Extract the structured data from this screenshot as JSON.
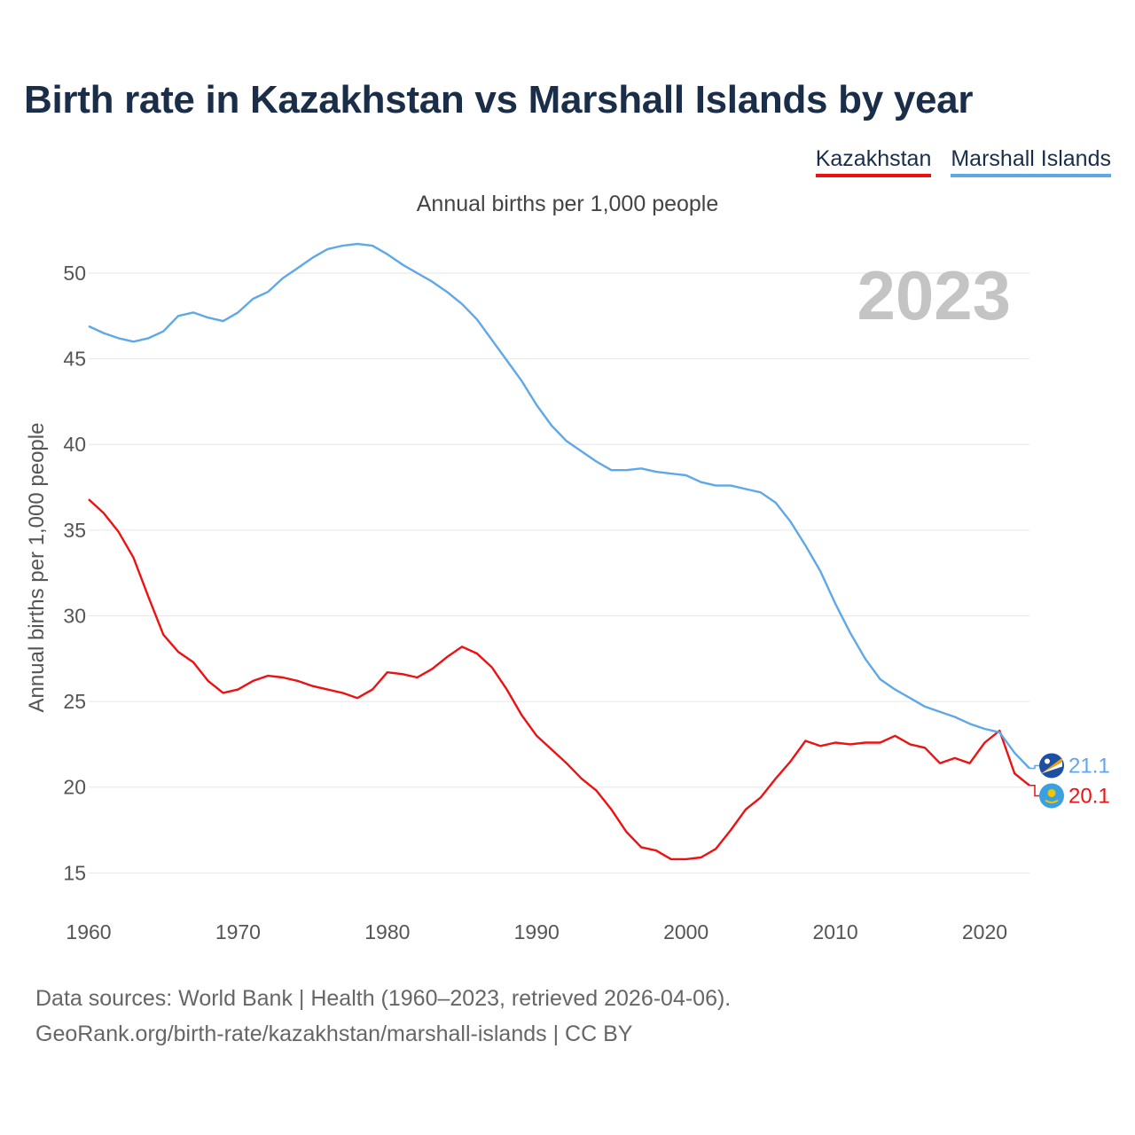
{
  "chart_data": {
    "type": "line",
    "title": "Birth rate in Kazakhstan vs Marshall Islands by year",
    "subtitle": "Annual births per 1,000 people",
    "ylabel": "Annual births per 1,000 people",
    "xlabel": "",
    "year_label": "2023",
    "x_range": [
      1960,
      2023
    ],
    "ylim": [
      13,
      53
    ],
    "y_ticks": [
      15,
      20,
      25,
      30,
      35,
      40,
      45,
      50
    ],
    "x_ticks": [
      1960,
      1970,
      1980,
      1990,
      2000,
      2010,
      2020
    ],
    "grid": true,
    "x": [
      1960,
      1961,
      1962,
      1963,
      1964,
      1965,
      1966,
      1967,
      1968,
      1969,
      1970,
      1971,
      1972,
      1973,
      1974,
      1975,
      1976,
      1977,
      1978,
      1979,
      1980,
      1981,
      1982,
      1983,
      1984,
      1985,
      1986,
      1987,
      1988,
      1989,
      1990,
      1991,
      1992,
      1993,
      1994,
      1995,
      1996,
      1997,
      1998,
      1999,
      2000,
      2001,
      2002,
      2003,
      2004,
      2005,
      2006,
      2007,
      2008,
      2009,
      2010,
      2011,
      2012,
      2013,
      2014,
      2015,
      2016,
      2017,
      2018,
      2019,
      2020,
      2021,
      2022,
      2023
    ],
    "series": [
      {
        "name": "Kazakhstan",
        "color": "#ee1111",
        "end_label": "20.1",
        "flag_icon": "kazakhstan-flag-icon",
        "values": [
          36.8,
          36.0,
          34.9,
          33.4,
          31.1,
          28.9,
          27.9,
          27.3,
          26.2,
          25.5,
          25.7,
          26.2,
          26.5,
          26.4,
          26.2,
          25.9,
          25.7,
          25.5,
          25.2,
          25.7,
          26.7,
          26.6,
          26.4,
          26.9,
          27.6,
          28.2,
          27.8,
          27.0,
          25.7,
          24.2,
          23.0,
          22.2,
          21.4,
          20.5,
          19.8,
          18.7,
          17.4,
          16.5,
          16.3,
          15.8,
          15.8,
          15.9,
          16.4,
          17.5,
          18.7,
          19.4,
          20.5,
          21.5,
          22.7,
          22.4,
          22.6,
          22.5,
          22.6,
          22.6,
          23.0,
          22.5,
          22.3,
          21.4,
          21.7,
          21.4,
          22.6,
          23.3,
          20.8,
          20.1
        ]
      },
      {
        "name": "Marshall Islands",
        "color": "#5fa8e8",
        "end_label": "21.1",
        "flag_icon": "marshall-islands-flag-icon",
        "values": [
          46.9,
          46.5,
          46.2,
          46.0,
          46.2,
          46.6,
          47.5,
          47.7,
          47.4,
          47.2,
          47.7,
          48.5,
          48.9,
          49.7,
          50.3,
          50.9,
          51.4,
          51.6,
          51.7,
          51.6,
          51.1,
          50.5,
          50.0,
          49.5,
          48.9,
          48.2,
          47.3,
          46.1,
          44.9,
          43.7,
          42.3,
          41.1,
          40.2,
          39.6,
          39.0,
          38.5,
          38.5,
          38.6,
          38.4,
          38.3,
          38.2,
          37.8,
          37.6,
          37.6,
          37.4,
          37.2,
          36.6,
          35.5,
          34.1,
          32.6,
          30.7,
          29.0,
          27.5,
          26.3,
          25.7,
          25.2,
          24.7,
          24.4,
          24.1,
          23.7,
          23.4,
          23.2,
          22.0,
          21.1
        ]
      }
    ],
    "legend": "top-right"
  },
  "sources": {
    "line1": "Data sources: World Bank | Health (1960–2023, retrieved 2026-04-06).",
    "line2": "GeoRank.org/birth-rate/kazakhstan/marshall-islands | CC BY"
  }
}
